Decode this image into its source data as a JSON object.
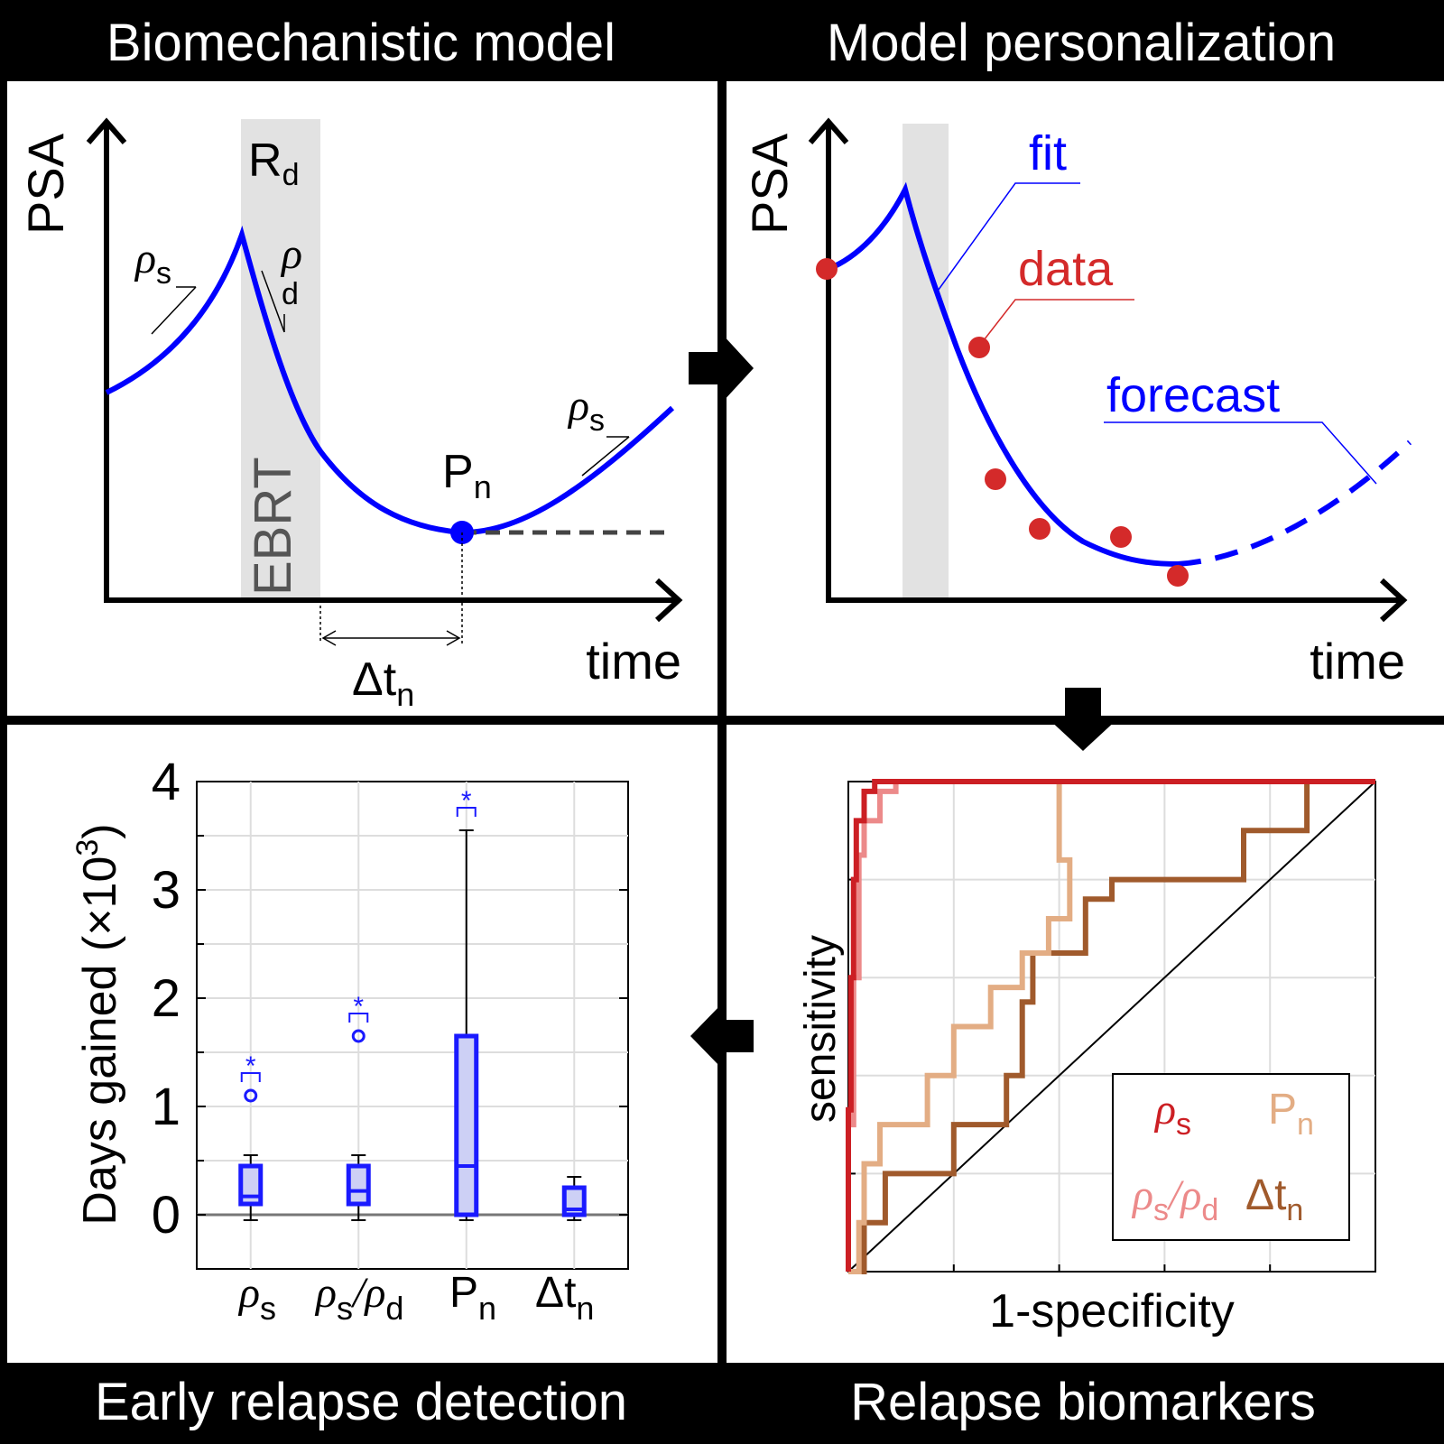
{
  "panels": {
    "model": {
      "title": "Biomechanistic model",
      "ylabel": "PSA",
      "xlabel": "time",
      "band_label": "EBRT",
      "band_top": {
        "main": "R",
        "sub": "d"
      },
      "rate_s": {
        "main": "ρ",
        "sub": "s"
      },
      "rate_d": {
        "main": "ρ",
        "sub": "d"
      },
      "nadir": {
        "main": "P",
        "sub": "n"
      },
      "interval": {
        "main": "Δt",
        "sub": "n"
      }
    },
    "personalization": {
      "title": "Model personalization",
      "ylabel": "PSA",
      "xlabel": "time",
      "fit_label": "fit",
      "data_label": "data",
      "forecast_label": "forecast"
    },
    "biomarkers": {
      "title": "Relapse biomarkers",
      "xlabel": "1-specificity",
      "ylabel": "sensitivity",
      "legend": [
        {
          "main": "ρ",
          "sub": "s",
          "color": "#cc1f24"
        },
        {
          "main": "P",
          "sub": "n",
          "color": "#e3ad84"
        },
        {
          "main": "ρ",
          "sub": "s",
          "main2": "/ρ",
          "sub2": "d",
          "color": "#ec8a8a"
        },
        {
          "main": "Δt",
          "sub": "n",
          "color": "#a05a2c"
        }
      ]
    },
    "detection": {
      "title": "Early relapse detection",
      "ylabel_main": "Days gained (×10",
      "ylabel_sup": "3",
      "ylabel_end": ")",
      "yticks": [
        "0",
        "1",
        "2",
        "3",
        "4"
      ],
      "categories": [
        {
          "main": "ρ",
          "sub": "s"
        },
        {
          "main": "ρ",
          "sub": "s",
          "main2": "/ρ",
          "sub2": "d"
        },
        {
          "main": "P",
          "sub": "n"
        },
        {
          "main": "Δt",
          "sub": "n"
        }
      ],
      "significance_mark": "*"
    }
  },
  "colors": {
    "model_curve": "#0000ff",
    "data_points": "#d42a2a",
    "band": "#e2e2e2",
    "rho_s": "#cc1f24",
    "rho_ratio": "#ec8a8a",
    "P_n": "#e3ad84",
    "dt_n": "#a05a2c",
    "box": "#1a1aff",
    "box_fill": "#cdd0f5"
  },
  "chart_data": [
    {
      "type": "roc",
      "xlabel": "1-specificity",
      "ylabel": "sensitivity",
      "xlim": [
        0,
        1
      ],
      "ylim": [
        0,
        1
      ],
      "grid": true,
      "legend_position": "bottom-right",
      "series": [
        {
          "name": "ρs",
          "color": "#cc1f24",
          "points": [
            [
              0,
              0
            ],
            [
              0,
              0.33
            ],
            [
              0.005,
              0.33
            ],
            [
              0.005,
              0.6
            ],
            [
              0.01,
              0.6
            ],
            [
              0.01,
              0.8
            ],
            [
              0.015,
              0.8
            ],
            [
              0.015,
              0.92
            ],
            [
              0.03,
              0.92
            ],
            [
              0.03,
              0.98
            ],
            [
              0.05,
              0.98
            ],
            [
              0.05,
              1
            ],
            [
              1,
              1
            ]
          ]
        },
        {
          "name": "ρs/ρd",
          "color": "#ec8a8a",
          "points": [
            [
              0,
              0
            ],
            [
              0,
              0.3
            ],
            [
              0.01,
              0.3
            ],
            [
              0.01,
              0.6
            ],
            [
              0.02,
              0.6
            ],
            [
              0.02,
              0.85
            ],
            [
              0.03,
              0.85
            ],
            [
              0.03,
              0.92
            ],
            [
              0.06,
              0.92
            ],
            [
              0.06,
              0.98
            ],
            [
              0.09,
              0.98
            ],
            [
              0.09,
              1
            ],
            [
              1,
              1
            ]
          ]
        },
        {
          "name": "Pn",
          "color": "#e3ad84",
          "points": [
            [
              0,
              0
            ],
            [
              0.02,
              0
            ],
            [
              0.02,
              0.1
            ],
            [
              0.03,
              0.1
            ],
            [
              0.03,
              0.22
            ],
            [
              0.06,
              0.22
            ],
            [
              0.06,
              0.3
            ],
            [
              0.15,
              0.3
            ],
            [
              0.15,
              0.4
            ],
            [
              0.2,
              0.4
            ],
            [
              0.2,
              0.5
            ],
            [
              0.27,
              0.5
            ],
            [
              0.27,
              0.58
            ],
            [
              0.33,
              0.58
            ],
            [
              0.33,
              0.65
            ],
            [
              0.38,
              0.65
            ],
            [
              0.38,
              0.72
            ],
            [
              0.42,
              0.72
            ],
            [
              0.42,
              0.84
            ],
            [
              0.4,
              0.84
            ],
            [
              0.4,
              1
            ],
            [
              1,
              1
            ]
          ]
        },
        {
          "name": "Δtn",
          "color": "#a05a2c",
          "points": [
            [
              0,
              0
            ],
            [
              0.03,
              0
            ],
            [
              0.03,
              0.1
            ],
            [
              0.04,
              0.1
            ],
            [
              0.04,
              0.1
            ],
            [
              0.07,
              0.1
            ],
            [
              0.07,
              0.2
            ],
            [
              0.1,
              0.2
            ],
            [
              0.1,
              0.2
            ],
            [
              0.2,
              0.2
            ],
            [
              0.2,
              0.3
            ],
            [
              0.3,
              0.3
            ],
            [
              0.3,
              0.4
            ],
            [
              0.33,
              0.4
            ],
            [
              0.33,
              0.55
            ],
            [
              0.35,
              0.55
            ],
            [
              0.35,
              0.65
            ],
            [
              0.45,
              0.65
            ],
            [
              0.45,
              0.76
            ],
            [
              0.5,
              0.76
            ],
            [
              0.5,
              0.8
            ],
            [
              0.75,
              0.8
            ],
            [
              0.75,
              0.9
            ],
            [
              0.87,
              0.9
            ],
            [
              0.87,
              1
            ],
            [
              1,
              1
            ]
          ]
        }
      ]
    },
    {
      "type": "box",
      "categories": [
        "ρs",
        "ρs/ρd",
        "Pn",
        "Δtn"
      ],
      "ylabel": "Days gained (×10^3)",
      "ylim": [
        -0.5,
        4
      ],
      "grid": true,
      "boxes": [
        {
          "category": "ρs",
          "whisker_low": -0.05,
          "q1": 0.1,
          "median": 0.17,
          "q3": 0.45,
          "whisker_high": 0.55,
          "outlier": 1.1,
          "significant": true
        },
        {
          "category": "ρs/ρd",
          "whisker_low": -0.05,
          "q1": 0.1,
          "median": 0.22,
          "q3": 0.45,
          "whisker_high": 0.55,
          "outlier": 1.65,
          "significant": true
        },
        {
          "category": "Pn",
          "whisker_low": -0.05,
          "q1": 0.0,
          "median": 0.45,
          "q3": 1.65,
          "whisker_high": 3.55,
          "outlier": null,
          "significant": true
        },
        {
          "category": "Δtn",
          "whisker_low": -0.05,
          "q1": 0.0,
          "median": 0.05,
          "q3": 0.25,
          "whisker_high": 0.35,
          "outlier": null,
          "significant": false
        }
      ]
    }
  ]
}
